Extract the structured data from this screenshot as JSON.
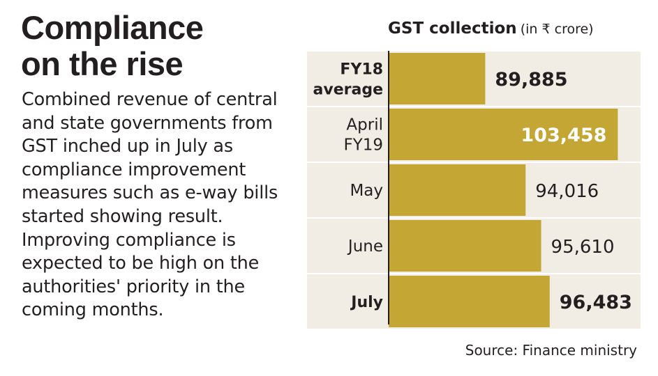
{
  "headline": "Compliance on the rise",
  "description": "Combined revenue of central and state governments from GST inched up in July as compliance improvement measures such as e-way bills started showing result. Improving compliance is expected to be high on the authorities' priority in the coming months.",
  "chart_data": {
    "type": "bar",
    "orientation": "horizontal",
    "title": "GST collection",
    "unit_note": "(in ₹ crore)",
    "categories": [
      [
        "FY18",
        "average"
      ],
      [
        "April",
        "FY19"
      ],
      [
        "May"
      ],
      [
        "June"
      ],
      [
        "July"
      ]
    ],
    "values": [
      89885,
      103458,
      94016,
      95610,
      96483
    ],
    "value_labels": [
      "89,885",
      "103,458",
      "94,016",
      "95,610",
      "96,483"
    ],
    "bold_categories": [
      true,
      false,
      false,
      false,
      true
    ],
    "bold_values": [
      true,
      true,
      false,
      false,
      true
    ],
    "value_label_inside": [
      false,
      true,
      false,
      false,
      false
    ],
    "xlim": [
      80000,
      104500
    ],
    "grid": false,
    "colors": {
      "bar": "#c4a635",
      "row_band": "#f1ede4",
      "axis": "#231f20",
      "label_inside": "#ffffff",
      "label": "#231f20"
    }
  },
  "source": "Source: Finance ministry"
}
